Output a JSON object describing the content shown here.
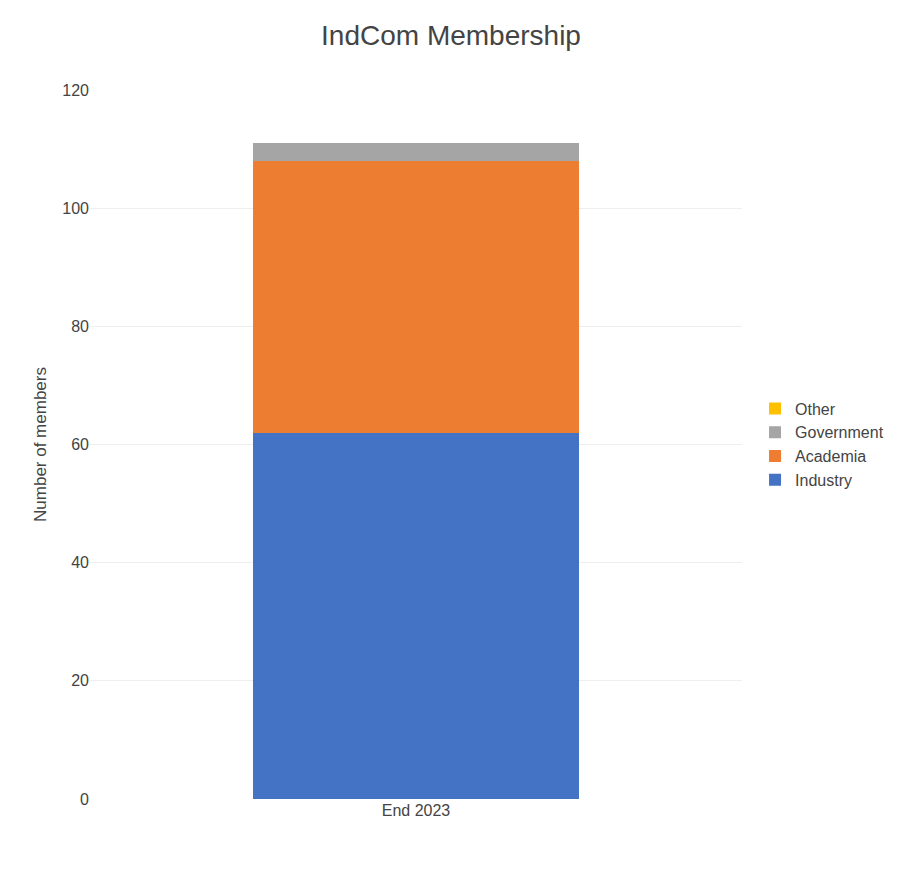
{
  "chart_data": {
    "type": "bar",
    "stacked": true,
    "title": "IndCom Membership",
    "ylabel": "Number of members",
    "categories": [
      "End 2023"
    ],
    "series": [
      {
        "name": "Industry",
        "color": "#4472C4",
        "values": [
          62
        ]
      },
      {
        "name": "Academia",
        "color": "#ED7D31",
        "values": [
          46
        ]
      },
      {
        "name": "Government",
        "color": "#A5A5A5",
        "values": [
          3
        ]
      },
      {
        "name": "Other",
        "color": "#FFC000",
        "values": [
          0
        ]
      }
    ],
    "ylim": [
      0,
      120
    ],
    "yticks": [
      0,
      20,
      40,
      60,
      80,
      100,
      120
    ],
    "grid": true,
    "legend": "right"
  }
}
